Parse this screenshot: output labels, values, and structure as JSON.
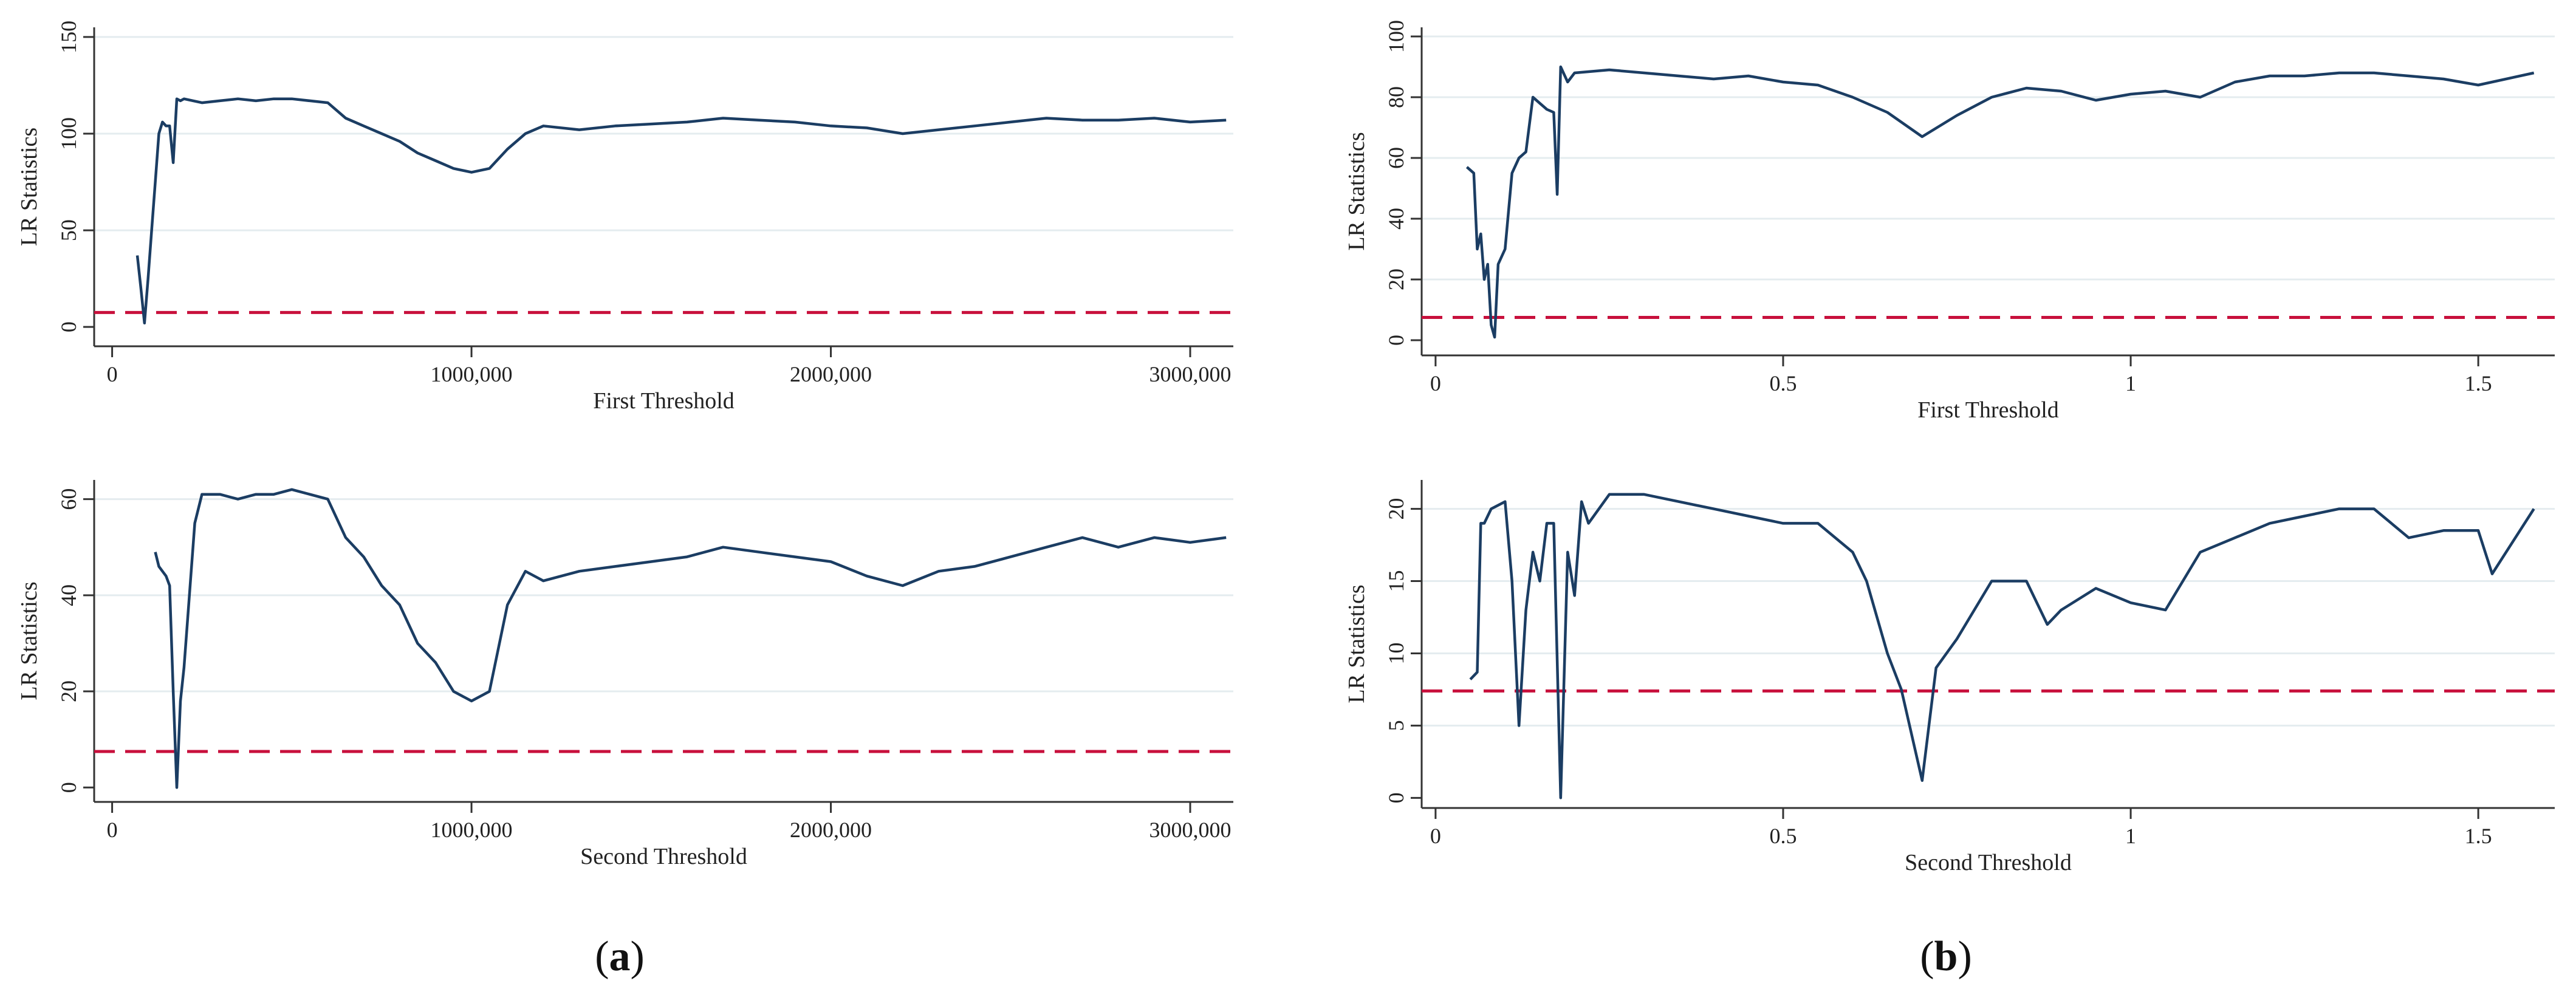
{
  "figure": {
    "panel_labels": [
      {
        "open": "(",
        "letter": "a",
        "close": ")"
      },
      {
        "open": "(",
        "letter": "b",
        "close": ")"
      }
    ]
  },
  "colors": {
    "line": "#1b3d63",
    "threshold": "#c8103c",
    "grid": "#e4ecef",
    "axis": "#333333"
  },
  "chart_data": [
    {
      "id": "a-top",
      "type": "line",
      "title": "",
      "xlabel": "First Threshold",
      "ylabel": "LR Statistics",
      "xlim": [
        -50000,
        3120000
      ],
      "ylim": [
        -10,
        155
      ],
      "xticks": [
        0,
        1000000,
        2000000,
        3000000
      ],
      "xtick_labels": [
        "0",
        "1000,000",
        "2000,000",
        "3000,000"
      ],
      "yticks": [
        0,
        50,
        100,
        150
      ],
      "ytick_labels": [
        "0",
        "50",
        "100",
        "150"
      ],
      "critical_value": 7.5,
      "series": [
        {
          "name": "LR",
          "x": [
            70000,
            80000,
            90000,
            100000,
            110000,
            120000,
            130000,
            140000,
            150000,
            160000,
            170000,
            180000,
            190000,
            200000,
            250000,
            300000,
            350000,
            400000,
            450000,
            500000,
            550000,
            600000,
            650000,
            700000,
            750000,
            800000,
            850000,
            900000,
            950000,
            1000000,
            1050000,
            1100000,
            1150000,
            1200000,
            1300000,
            1400000,
            1500000,
            1600000,
            1700000,
            1800000,
            1900000,
            2000000,
            2100000,
            2200000,
            2300000,
            2400000,
            2500000,
            2600000,
            2700000,
            2800000,
            2900000,
            3000000,
            3100000
          ],
          "y": [
            37,
            20,
            2,
            25,
            50,
            75,
            100,
            106,
            104,
            104,
            85,
            118,
            117,
            118,
            116,
            117,
            118,
            117,
            118,
            118,
            117,
            116,
            108,
            104,
            100,
            96,
            90,
            86,
            82,
            80,
            82,
            92,
            100,
            104,
            102,
            104,
            105,
            106,
            108,
            107,
            106,
            104,
            103,
            100,
            102,
            104,
            106,
            108,
            107,
            107,
            108,
            106,
            107
          ]
        }
      ]
    },
    {
      "id": "a-bottom",
      "type": "line",
      "title": "",
      "xlabel": "Second Threshold",
      "ylabel": "LR Statistics",
      "xlim": [
        -50000,
        3120000
      ],
      "ylim": [
        -3,
        64
      ],
      "xticks": [
        0,
        1000000,
        2000000,
        3000000
      ],
      "xtick_labels": [
        "0",
        "1000,000",
        "2000,000",
        "3000,000"
      ],
      "yticks": [
        0,
        20,
        40,
        60
      ],
      "ytick_labels": [
        "0",
        "20",
        "40",
        "60"
      ],
      "critical_value": 7.5,
      "series": [
        {
          "name": "LR",
          "x": [
            120000,
            130000,
            140000,
            150000,
            160000,
            170000,
            180000,
            190000,
            200000,
            210000,
            220000,
            230000,
            250000,
            300000,
            350000,
            400000,
            450000,
            500000,
            550000,
            600000,
            650000,
            700000,
            750000,
            800000,
            850000,
            900000,
            950000,
            1000000,
            1050000,
            1100000,
            1150000,
            1200000,
            1300000,
            1400000,
            1500000,
            1600000,
            1700000,
            1800000,
            1900000,
            2000000,
            2100000,
            2200000,
            2300000,
            2400000,
            2500000,
            2600000,
            2700000,
            2800000,
            2900000,
            3000000,
            3100000
          ],
          "y": [
            49,
            46,
            45,
            44,
            42,
            20,
            0,
            18,
            25,
            35,
            45,
            55,
            61,
            61,
            60,
            61,
            61,
            62,
            61,
            60,
            52,
            48,
            42,
            38,
            30,
            26,
            20,
            18,
            20,
            38,
            45,
            43,
            45,
            46,
            47,
            48,
            50,
            49,
            48,
            47,
            44,
            42,
            45,
            46,
            48,
            50,
            52,
            50,
            52,
            51,
            52
          ]
        }
      ]
    },
    {
      "id": "b-top",
      "type": "line",
      "title": "",
      "xlabel": "First Threshold",
      "ylabel": "LR Statistics",
      "xlim": [
        -0.02,
        1.61
      ],
      "ylim": [
        -5,
        103
      ],
      "xticks": [
        0,
        0.5,
        1,
        1.5
      ],
      "xtick_labels": [
        "0",
        "0.5",
        "1",
        "1.5"
      ],
      "yticks": [
        0,
        20,
        40,
        60,
        80,
        100
      ],
      "ytick_labels": [
        "0",
        "20",
        "40",
        "60",
        "80",
        "100"
      ],
      "critical_value": 7.5,
      "series": [
        {
          "name": "LR",
          "x": [
            0.045,
            0.055,
            0.06,
            0.065,
            0.07,
            0.075,
            0.08,
            0.085,
            0.09,
            0.1,
            0.11,
            0.12,
            0.13,
            0.14,
            0.15,
            0.16,
            0.17,
            0.175,
            0.18,
            0.19,
            0.2,
            0.25,
            0.3,
            0.35,
            0.4,
            0.45,
            0.5,
            0.55,
            0.6,
            0.65,
            0.7,
            0.75,
            0.8,
            0.85,
            0.9,
            0.95,
            1.0,
            1.05,
            1.1,
            1.15,
            1.2,
            1.25,
            1.3,
            1.35,
            1.4,
            1.45,
            1.5,
            1.58
          ],
          "y": [
            57,
            55,
            30,
            35,
            20,
            25,
            5,
            1,
            25,
            30,
            55,
            60,
            62,
            80,
            78,
            76,
            75,
            48,
            90,
            85,
            88,
            89,
            88,
            87,
            86,
            87,
            85,
            84,
            80,
            75,
            67,
            74,
            80,
            83,
            82,
            79,
            81,
            82,
            80,
            85,
            87,
            87,
            88,
            88,
            87,
            86,
            84,
            88
          ]
        }
      ]
    },
    {
      "id": "b-bottom",
      "type": "line",
      "title": "",
      "xlabel": "Second Threshold",
      "ylabel": "LR Statistics",
      "xlim": [
        -0.02,
        1.61
      ],
      "ylim": [
        -0.7,
        22
      ],
      "xticks": [
        0,
        0.5,
        1,
        1.5
      ],
      "xtick_labels": [
        "0",
        "0.5",
        "1",
        "1.5"
      ],
      "yticks": [
        0,
        5,
        10,
        15,
        20
      ],
      "ytick_labels": [
        "0",
        "5",
        "10",
        "15",
        "20"
      ],
      "critical_value": 7.4,
      "series": [
        {
          "name": "LR",
          "x": [
            0.05,
            0.06,
            0.065,
            0.07,
            0.08,
            0.1,
            0.11,
            0.12,
            0.13,
            0.14,
            0.15,
            0.16,
            0.17,
            0.18,
            0.19,
            0.2,
            0.21,
            0.22,
            0.25,
            0.3,
            0.35,
            0.4,
            0.45,
            0.5,
            0.55,
            0.6,
            0.62,
            0.65,
            0.67,
            0.7,
            0.72,
            0.75,
            0.8,
            0.85,
            0.88,
            0.9,
            0.95,
            1.0,
            1.05,
            1.1,
            1.15,
            1.2,
            1.25,
            1.3,
            1.35,
            1.4,
            1.45,
            1.5,
            1.52,
            1.58
          ],
          "y": [
            8.2,
            8.7,
            19,
            19,
            20,
            20.5,
            15,
            5,
            13,
            17,
            15,
            19,
            19,
            0,
            17,
            14,
            20.5,
            19,
            21,
            21,
            20.5,
            20,
            19.5,
            19,
            19,
            17,
            15,
            10,
            7.5,
            1.2,
            9,
            11,
            15,
            15,
            12,
            13,
            14.5,
            13.5,
            13,
            17,
            18,
            19,
            19.5,
            20,
            20,
            18,
            18.5,
            18.5,
            15.5,
            20
          ]
        }
      ]
    }
  ]
}
